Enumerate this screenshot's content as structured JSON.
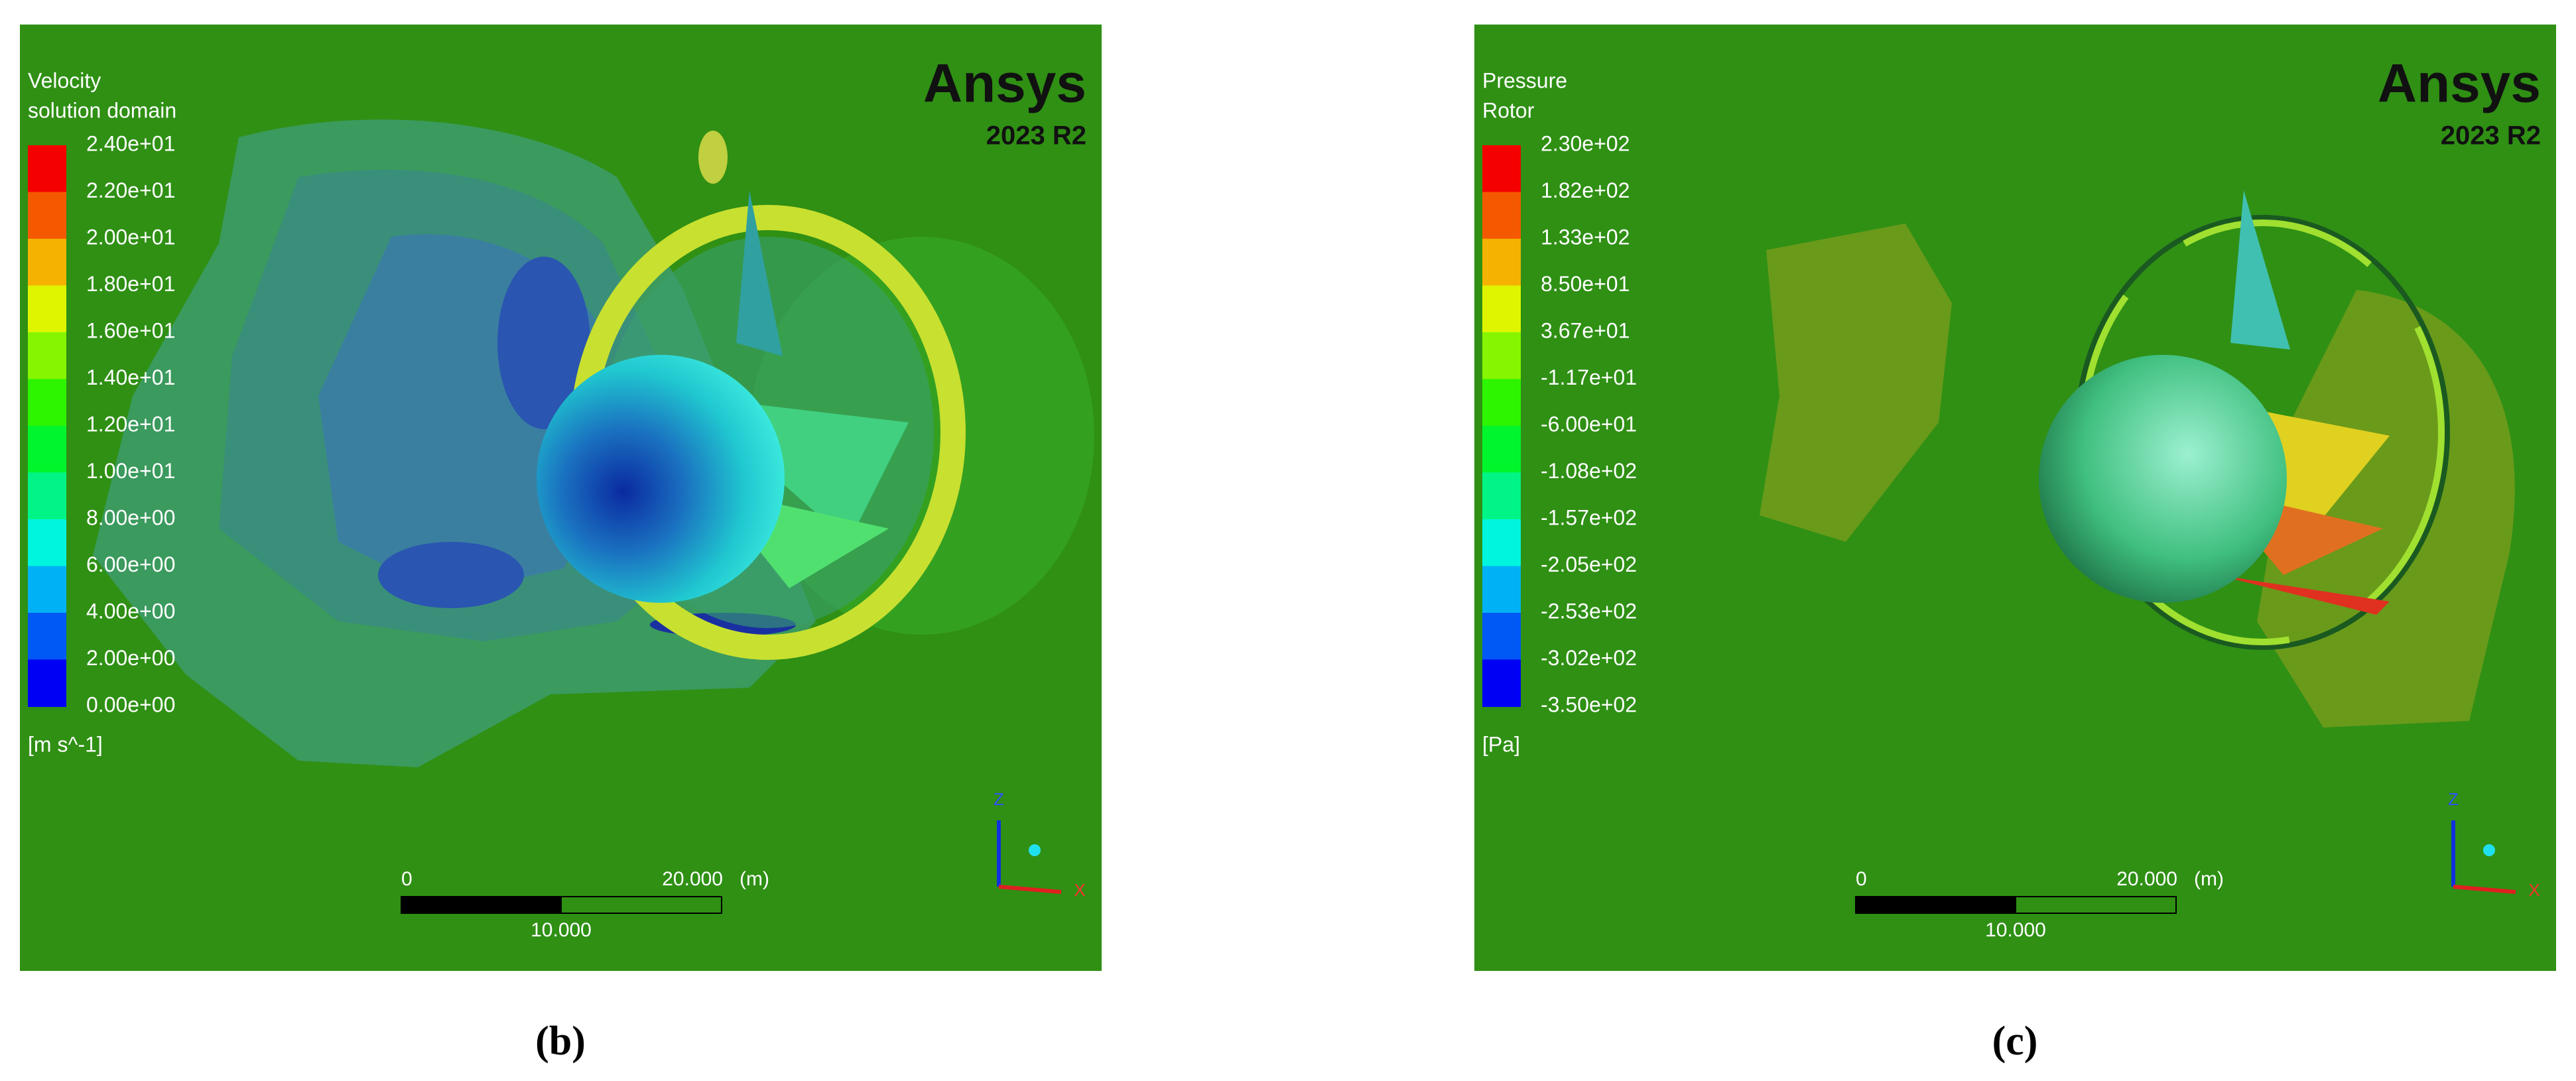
{
  "panels": [
    {
      "title": "Velocity",
      "subtitle": "solution domain",
      "legend_labels": [
        "2.40e+01",
        "2.20e+01",
        "2.00e+01",
        "1.80e+01",
        "1.60e+01",
        "1.40e+01",
        "1.20e+01",
        "1.00e+01",
        "8.00e+00",
        "6.00e+00",
        "4.00e+00",
        "2.00e+00",
        "0.00e+00"
      ],
      "unit": "[m s^-1]",
      "logo": "Ansys",
      "version": "2023 R2",
      "scale_start": "0",
      "scale_end": "20.000",
      "scale_unit": "(m)",
      "scale_mid": "10.000",
      "axis_labels": [
        "Z",
        "X"
      ],
      "caption": "(b)"
    },
    {
      "title": "Pressure",
      "subtitle": "Rotor",
      "legend_labels": [
        "2.30e+02",
        "1.82e+02",
        "1.33e+02",
        "8.50e+01",
        "3.67e+01",
        "-1.17e+01",
        "-6.00e+01",
        "-1.08e+02",
        "-1.57e+02",
        "-2.05e+02",
        "-2.53e+02",
        "-3.02e+02",
        "-3.50e+02"
      ],
      "unit": "[Pa]",
      "logo": "Ansys",
      "version": "2023 R2",
      "scale_start": "0",
      "scale_end": "20.000",
      "scale_unit": "(m)",
      "scale_mid": "10.000",
      "axis_labels": [
        "Z",
        "X"
      ],
      "caption": "(c)"
    }
  ]
}
